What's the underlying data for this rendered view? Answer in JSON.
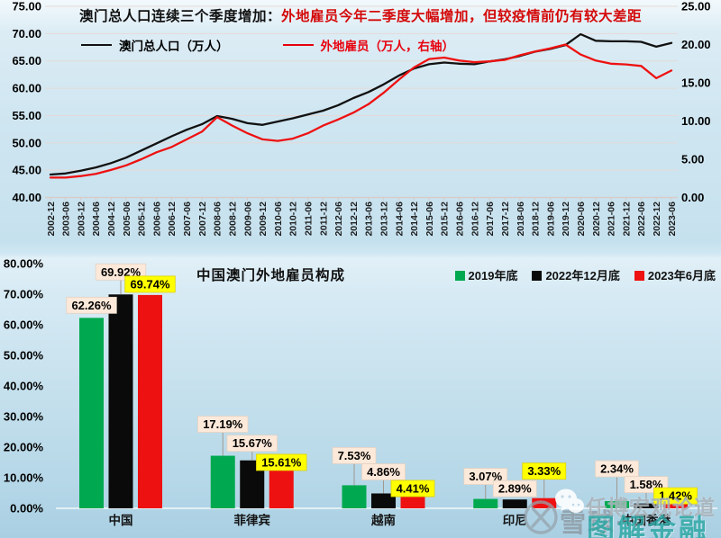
{
  "top_chart": {
    "title_black": "澳门总人口连续三个季度增加：",
    "title_red": "外地雇员今年二季度大幅增加，但较疫情前仍有较大差距",
    "legend": [
      {
        "label": "澳门总人口（万人）",
        "color": "#111111"
      },
      {
        "label": "外地雇员（万人，右轴）",
        "color": "#e8000d"
      }
    ]
  },
  "chart_data": [
    {
      "type": "line",
      "title": "澳门总人口连续三个季度增加：外地雇员今年二季度大幅增加，但较疫情前仍有较大差距",
      "x": [
        "2002-12",
        "2003-06",
        "2003-12",
        "2004-06",
        "2004-12",
        "2005-06",
        "2005-12",
        "2006-06",
        "2006-12",
        "2007-06",
        "2007-12",
        "2008-06",
        "2008-12",
        "2009-06",
        "2009-12",
        "2010-06",
        "2010-12",
        "2011-06",
        "2011-12",
        "2012-06",
        "2012-12",
        "2013-06",
        "2013-12",
        "2014-06",
        "2014-12",
        "2015-06",
        "2015-12",
        "2016-06",
        "2016-12",
        "2017-06",
        "2017-12",
        "2018-06",
        "2018-12",
        "2019-06",
        "2019-12",
        "2020-06",
        "2020-12",
        "2021-06",
        "2021-12",
        "2022-06",
        "2022-12",
        "2023-06"
      ],
      "series": [
        {
          "name": "澳门总人口（万人）",
          "axis": "left",
          "color": "#111111",
          "values": [
            44.2,
            44.4,
            44.9,
            45.5,
            46.3,
            47.3,
            48.6,
            49.9,
            51.2,
            52.4,
            53.4,
            54.9,
            54.4,
            53.6,
            53.3,
            53.9,
            54.5,
            55.2,
            55.9,
            56.9,
            58.2,
            59.3,
            60.7,
            62.3,
            63.6,
            64.4,
            64.7,
            64.5,
            64.4,
            64.9,
            65.3,
            65.9,
            66.7,
            67.2,
            67.9,
            69.9,
            68.7,
            68.6,
            68.6,
            68.5,
            67.6,
            68.3
          ]
        },
        {
          "name": "外地雇员（万人，右轴）",
          "axis": "right",
          "color": "#ee1111",
          "values": [
            2.6,
            2.6,
            2.8,
            3.1,
            3.6,
            4.2,
            5.0,
            5.9,
            6.6,
            7.6,
            8.6,
            10.5,
            9.4,
            8.4,
            7.6,
            7.4,
            7.7,
            8.4,
            9.4,
            10.2,
            11.1,
            12.2,
            13.7,
            15.4,
            17.0,
            18.1,
            18.3,
            17.9,
            17.7,
            17.8,
            18.0,
            18.6,
            19.1,
            19.5,
            20.0,
            18.7,
            17.9,
            17.5,
            17.4,
            17.2,
            15.6,
            16.6
          ]
        }
      ],
      "left_axis": {
        "min": 40,
        "max": 75,
        "step": 5,
        "labels": [
          "75.00",
          "70.00",
          "65.00",
          "60.00",
          "55.00",
          "50.00",
          "45.00",
          "40.00"
        ]
      },
      "right_axis": {
        "min": 0,
        "max": 25,
        "step": 5,
        "labels": [
          "25.00",
          "20.00",
          "15.00",
          "10.00",
          "5.00",
          "0.00"
        ]
      },
      "grid": true,
      "legend_position": "top-left"
    },
    {
      "type": "bar",
      "title": "中国澳门外地雇员构成",
      "categories": [
        "中国",
        "菲律宾",
        "越南",
        "印尼",
        "中国香港"
      ],
      "series": [
        {
          "name": "2019年底",
          "color": "#00a94f",
          "values": [
            62.26,
            17.19,
            7.53,
            3.07,
            2.34
          ]
        },
        {
          "name": "2022年12月底",
          "color": "#0a0a0a",
          "values": [
            69.92,
            15.67,
            4.86,
            2.89,
            1.58
          ]
        },
        {
          "name": "2023年6月底",
          "color": "#ee1111",
          "values": [
            69.74,
            15.61,
            4.41,
            3.33,
            1.42
          ]
        }
      ],
      "data_labels": [
        [
          "62.26%",
          "69.92%",
          "69.74%"
        ],
        [
          "17.19%",
          "15.67%",
          "15.61%"
        ],
        [
          "7.53%",
          "4.86%",
          "4.41%"
        ],
        [
          "3.07%",
          "2.89%",
          "3.33%"
        ],
        [
          "2.34%",
          "1.58%",
          "1.42%"
        ]
      ],
      "label_colors": {
        "normal_bg": "#fce9da",
        "highlight_bg": "#ffff00"
      },
      "y_axis": {
        "min": 0,
        "max": 80,
        "step": 10,
        "labels": [
          "80.00%",
          "70.00%",
          "60.00%",
          "50.00%",
          "40.00%",
          "30.00%",
          "20.00%",
          "10.00%",
          "0.00%"
        ]
      },
      "grid": false,
      "legend_position": "top-right"
    }
  ],
  "watermark": {
    "brand": "雪球·",
    "account": "任博宏观论道",
    "overlay": "图解金融",
    "brand_color": "#8d99a2",
    "overlay_color": "#2aa7a3"
  }
}
